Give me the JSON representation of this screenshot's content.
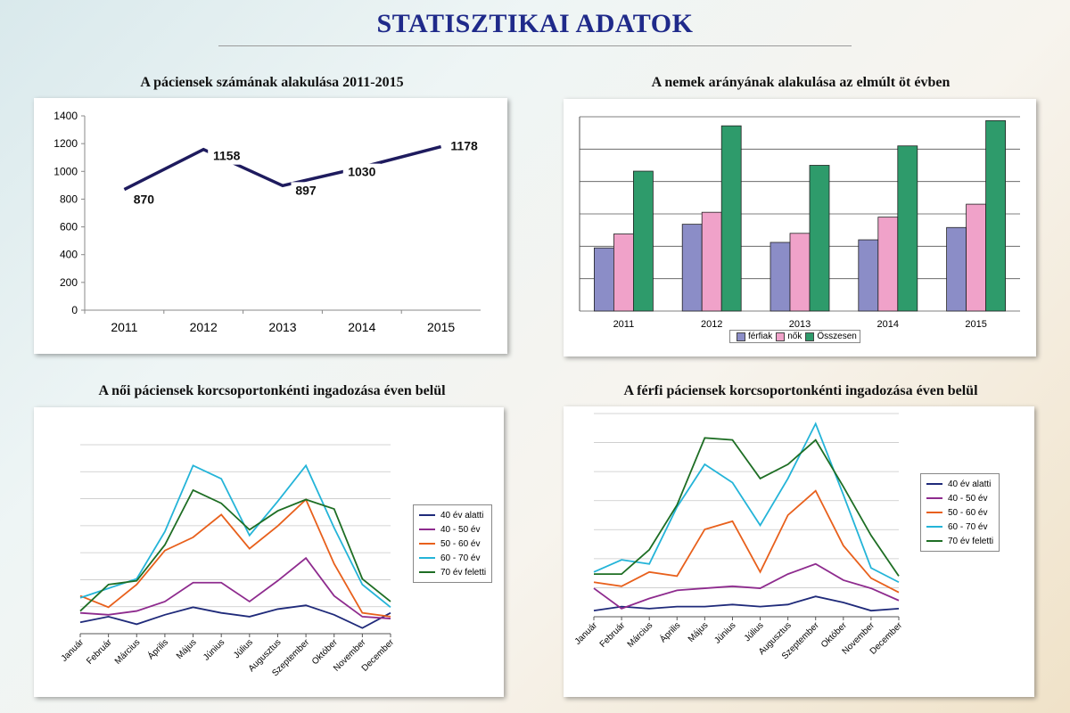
{
  "page": {
    "title": "STATISZTIKAI ADATOK"
  },
  "chart_data": [
    {
      "id": "patients",
      "type": "line",
      "title": "A páciensek számának alakulása 2011-2015",
      "categories": [
        "2011",
        "2012",
        "2013",
        "2014",
        "2015"
      ],
      "values": [
        870,
        1158,
        897,
        1030,
        1178
      ],
      "data_labels": [
        "870",
        "1158",
        "897",
        "1030",
        "1178"
      ],
      "ylim": [
        0,
        1400
      ],
      "yticks": [
        "0",
        "200",
        "400",
        "600",
        "800",
        "1000",
        "1200",
        "1400"
      ],
      "color": "#1e1b5e",
      "grid": false
    },
    {
      "id": "gender",
      "type": "bar",
      "title": "A nemek arányának alakulása az elmúlt öt évben",
      "categories": [
        "2011",
        "2012",
        "2013",
        "2014",
        "2015"
      ],
      "ylim": [
        0,
        600
      ],
      "grid": true,
      "legend_position": "bottom",
      "series": [
        {
          "name": "férfiak",
          "color": "#8b8dc7",
          "values": [
            195,
            268,
            212,
            220,
            258
          ]
        },
        {
          "name": "nők",
          "color": "#f0a2c9",
          "values": [
            238,
            305,
            240,
            290,
            330
          ]
        },
        {
          "name": "Összesen",
          "color": "#2e9b6b",
          "values": [
            432,
            572,
            450,
            510,
            588
          ]
        }
      ]
    },
    {
      "id": "female-age",
      "type": "line",
      "title": "A női páciensek korcsoportonkénti ingadozása éven belül",
      "categories": [
        "Január",
        "Február",
        "Március",
        "Április",
        "Május",
        "Június",
        "Július",
        "Augusztus",
        "Szeptember",
        "Október",
        "November",
        "December"
      ],
      "ylim": [
        0,
        100
      ],
      "grid": true,
      "legend_position": "right",
      "series": [
        {
          "name": "40 év alatti",
          "color": "#1f2a7a",
          "values": [
            6,
            9,
            5,
            10,
            14,
            11,
            9,
            13,
            15,
            10,
            3,
            11
          ]
        },
        {
          "name": "40 - 50 év",
          "color": "#8e2b8e",
          "values": [
            11,
            10,
            12,
            17,
            27,
            27,
            17,
            28,
            40,
            20,
            9,
            8
          ]
        },
        {
          "name": "50 - 60 év",
          "color": "#e8601c",
          "values": [
            20,
            14,
            26,
            44,
            51,
            63,
            45,
            57,
            71,
            37,
            11,
            9
          ]
        },
        {
          "name": "60 - 70 év",
          "color": "#24b4d8",
          "values": [
            19,
            24,
            29,
            54,
            89,
            82,
            52,
            70,
            89,
            56,
            26,
            14
          ]
        },
        {
          "name": "70 év feletti",
          "color": "#1e6e24",
          "values": [
            12,
            26,
            28,
            47,
            76,
            69,
            55,
            65,
            71,
            66,
            29,
            17
          ]
        }
      ]
    },
    {
      "id": "male-age",
      "type": "line",
      "title": "A férfi páciensek korcsoportonkénti ingadozása éven belül",
      "categories": [
        "Január",
        "Február",
        "Március",
        "Április",
        "Május",
        "Június",
        "Július",
        "Augusztus",
        "Szeptember",
        "Október",
        "November",
        "December"
      ],
      "ylim": [
        0,
        100
      ],
      "grid": true,
      "legend_position": "right",
      "series": [
        {
          "name": "40 év alatti",
          "color": "#1f2a7a",
          "values": [
            3,
            5,
            4,
            5,
            5,
            6,
            5,
            6,
            10,
            7,
            3,
            4
          ]
        },
        {
          "name": "40 - 50 év",
          "color": "#8e2b8e",
          "values": [
            14,
            4,
            9,
            13,
            14,
            15,
            14,
            21,
            26,
            18,
            14,
            8
          ]
        },
        {
          "name": "50 - 60 év",
          "color": "#e8601c",
          "values": [
            17,
            15,
            22,
            20,
            43,
            47,
            22,
            50,
            62,
            35,
            19,
            12
          ]
        },
        {
          "name": "60 - 70 év",
          "color": "#24b4d8",
          "values": [
            22,
            28,
            26,
            54,
            75,
            66,
            45,
            68,
            95,
            60,
            24,
            17
          ]
        },
        {
          "name": "70 év feletti",
          "color": "#1e6e24",
          "values": [
            21,
            21,
            33,
            55,
            88,
            87,
            68,
            75,
            87,
            64,
            40,
            20
          ]
        }
      ]
    }
  ]
}
